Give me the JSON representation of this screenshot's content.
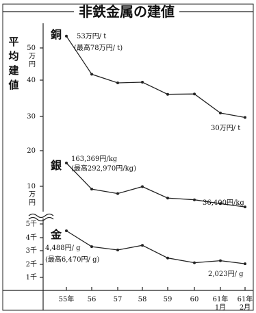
{
  "chart_data": {
    "type": "line",
    "title": "非鉄金属の建値",
    "ylabel": "平均建値",
    "categories": [
      "55年",
      "56",
      "57",
      "58",
      "59",
      "60",
      "61年 1月",
      "61年 2月"
    ],
    "y_axes": [
      {
        "unit": "万円",
        "ticks": [
          "50",
          "40",
          "30",
          "20",
          "10"
        ]
      },
      {
        "unit": "千円",
        "ticks": [
          "5千",
          "4千",
          "3千",
          "2千",
          "1千"
        ]
      }
    ],
    "series": [
      {
        "name": "銅",
        "unit": "万円/t",
        "values": [
          53,
          42,
          39.5,
          39.7,
          36.2,
          36.3,
          30.8,
          29.5
        ],
        "annotations": [
          "53万円/ t",
          "(最高78万円/ t)",
          "30万円/ t"
        ]
      },
      {
        "name": "銀",
        "unit": "円/kg",
        "values": [
          163369,
          88000,
          75000,
          95000,
          62000,
          57000,
          46000,
          36400
        ],
        "annotations": [
          "163,369円/kg",
          "(最高292,970円/kg)",
          "36,400円/kg"
        ]
      },
      {
        "name": "金",
        "unit": "円/g",
        "values": [
          4488,
          3300,
          3050,
          3400,
          2450,
          2100,
          2250,
          2023
        ],
        "annotations": [
          "4,488円/ g",
          "(最高6,470円/ g)",
          "2,023円/ g"
        ]
      }
    ],
    "x_labels": [
      {
        "line1": "55年",
        "line2": ""
      },
      {
        "line1": "56",
        "line2": ""
      },
      {
        "line1": "57",
        "line2": ""
      },
      {
        "line1": "58",
        "line2": ""
      },
      {
        "line1": "59",
        "line2": ""
      },
      {
        "line1": "60",
        "line2": ""
      },
      {
        "line1": "61年",
        "line2": "1月"
      },
      {
        "line1": "61年",
        "line2": "2月"
      }
    ],
    "grid": false,
    "break_marker": "≈"
  }
}
